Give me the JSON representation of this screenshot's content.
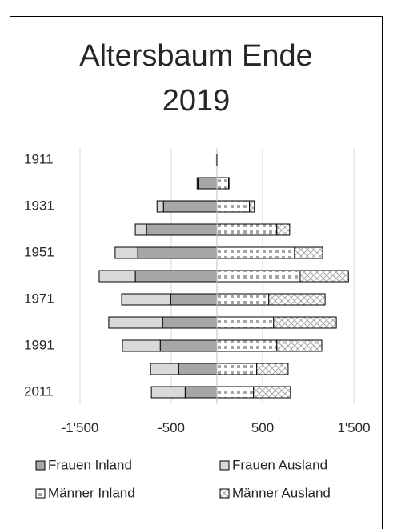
{
  "chart_data": {
    "type": "bar",
    "orientation": "horizontal",
    "stacked": true,
    "title": "Altersbaum Ende 2019",
    "categories": [
      "1911",
      null,
      "1931",
      null,
      "1951",
      null,
      "1971",
      null,
      "1991",
      null,
      "2011"
    ],
    "series": [
      {
        "name": "Frauen Inland",
        "color": "#a6a6a6",
        "values": [
          -5,
          -207,
          -586,
          -771,
          -868,
          -894,
          -507,
          -595,
          -621,
          -419,
          -348
        ]
      },
      {
        "name": "Frauen Ausland",
        "color": "#d9d9d9",
        "values": [
          0,
          -10,
          -70,
          -123,
          -247,
          -396,
          -537,
          -590,
          -414,
          -308,
          -370
        ]
      },
      {
        "name": "Männer Inland",
        "color": "#a6a6a6",
        "pattern": "checker",
        "values": [
          3,
          128,
          357,
          656,
          850,
          912,
          568,
          621,
          656,
          436,
          401
        ]
      },
      {
        "name": "Männer Ausland",
        "color": "#a6a6a6",
        "pattern": "cross",
        "values": [
          0,
          5,
          53,
          141,
          308,
          529,
          617,
          687,
          493,
          344,
          405
        ]
      }
    ],
    "xlim": [
      -1500,
      1500
    ],
    "xticks": [
      {
        "value": -1500,
        "label": "-1'500"
      },
      -500,
      500,
      {
        "value": 1500,
        "label": "1'500"
      }
    ],
    "grid": true,
    "legend": "bottom"
  }
}
